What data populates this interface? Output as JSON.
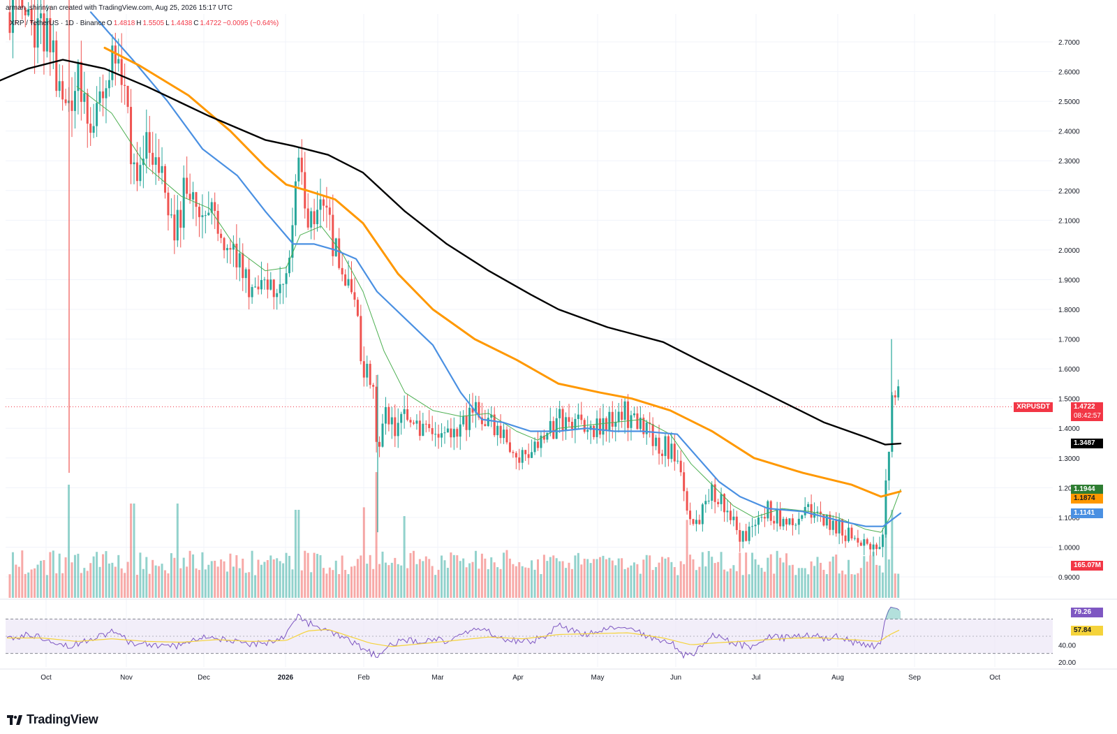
{
  "header": {
    "credit": "arman_shirinyan created with TradingView.com, Aug 25, 2026 15:17 UTC",
    "symbol": "XRP / TetherUS · 1D · Binance",
    "o_label": "O",
    "o_value": "1.4818",
    "h_label": "H",
    "h_value": "1.5505",
    "l_label": "L",
    "l_value": "1.4438",
    "c_label": "C",
    "c_value": "1.4722",
    "change": "−0.0095 (−0.64%)"
  },
  "badges": {
    "symbol_tag": "XRPUSDT",
    "last_price": "1.4722",
    "countdown": "08:42:57",
    "ma200": "1.3487",
    "ma20": "1.1944",
    "ma100": "1.1874",
    "ma50": "1.1141",
    "volume": "165.07M",
    "rsi": "79.26",
    "rsi_ma": "57.84"
  },
  "colors": {
    "up": "#26a69a",
    "down": "#ef5350",
    "ma200": "#000000",
    "ma100": "#ff9800",
    "ma50": "#4a90e2",
    "ma20": "#4caf50",
    "rsi": "#7e57c2",
    "rsi_ma": "#f5d33b"
  },
  "footer": {
    "logo_text": "TradingView"
  },
  "chart_data": {
    "type": "candlestick",
    "y_axis_ticks": [
      "2.7000",
      "2.6000",
      "2.5000",
      "2.4000",
      "2.3000",
      "2.2000",
      "2.1000",
      "2.0000",
      "1.9000",
      "1.8000",
      "1.7000",
      "1.6000",
      "1.5000",
      "1.4000",
      "1.3000",
      "1.2000",
      "1.1000",
      "1.0000",
      "0.9000"
    ],
    "ylim": [
      0.84,
      2.8
    ],
    "x_axis_ticks": [
      "Oct",
      "Nov",
      "Dec",
      "2026",
      "Feb",
      "Mar",
      "Apr",
      "May",
      "Jun",
      "Jul",
      "Aug",
      "Sep",
      "Oct"
    ],
    "rsi_ticks": [
      "20.00",
      "40.00"
    ],
    "rsi_levels": [
      70,
      50,
      30
    ],
    "ma200": [
      [
        0,
        2.57
      ],
      [
        40,
        2.61
      ],
      [
        90,
        2.64
      ],
      [
        150,
        2.61
      ],
      [
        210,
        2.55
      ],
      [
        300,
        2.45
      ],
      [
        380,
        2.37
      ],
      [
        420,
        2.35
      ],
      [
        470,
        2.32
      ],
      [
        520,
        2.26
      ],
      [
        580,
        2.13
      ],
      [
        640,
        2.02
      ],
      [
        700,
        1.93
      ],
      [
        760,
        1.85
      ],
      [
        800,
        1.8
      ],
      [
        870,
        1.74
      ],
      [
        950,
        1.69
      ],
      [
        1000,
        1.63
      ],
      [
        1060,
        1.56
      ],
      [
        1120,
        1.49
      ],
      [
        1180,
        1.42
      ],
      [
        1240,
        1.37
      ],
      [
        1268,
        1.345
      ],
      [
        1290,
        1.3487
      ]
    ],
    "ma100": [
      [
        150,
        2.68
      ],
      [
        200,
        2.62
      ],
      [
        270,
        2.52
      ],
      [
        330,
        2.4
      ],
      [
        380,
        2.28
      ],
      [
        410,
        2.22
      ],
      [
        440,
        2.2
      ],
      [
        480,
        2.17
      ],
      [
        520,
        2.09
      ],
      [
        570,
        1.92
      ],
      [
        620,
        1.8
      ],
      [
        680,
        1.7
      ],
      [
        740,
        1.63
      ],
      [
        800,
        1.55
      ],
      [
        860,
        1.52
      ],
      [
        905,
        1.5
      ],
      [
        960,
        1.46
      ],
      [
        1020,
        1.39
      ],
      [
        1080,
        1.3
      ],
      [
        1150,
        1.25
      ],
      [
        1220,
        1.21
      ],
      [
        1262,
        1.17
      ],
      [
        1290,
        1.1874
      ]
    ],
    "ma50": [
      [
        130,
        2.8
      ],
      [
        190,
        2.64
      ],
      [
        240,
        2.5
      ],
      [
        290,
        2.34
      ],
      [
        340,
        2.25
      ],
      [
        380,
        2.13
      ],
      [
        420,
        2.02
      ],
      [
        450,
        2.02
      ],
      [
        480,
        2.0
      ],
      [
        510,
        1.97
      ],
      [
        540,
        1.86
      ],
      [
        580,
        1.77
      ],
      [
        620,
        1.68
      ],
      [
        660,
        1.52
      ],
      [
        690,
        1.43
      ],
      [
        720,
        1.42
      ],
      [
        760,
        1.39
      ],
      [
        800,
        1.39
      ],
      [
        840,
        1.4
      ],
      [
        880,
        1.39
      ],
      [
        920,
        1.39
      ],
      [
        970,
        1.38
      ],
      [
        1000,
        1.3
      ],
      [
        1030,
        1.22
      ],
      [
        1060,
        1.17
      ],
      [
        1100,
        1.13
      ],
      [
        1150,
        1.12
      ],
      [
        1200,
        1.09
      ],
      [
        1240,
        1.07
      ],
      [
        1265,
        1.07
      ],
      [
        1290,
        1.1141
      ]
    ],
    "ma20": [
      [
        110,
        2.55
      ],
      [
        160,
        2.46
      ],
      [
        210,
        2.28
      ],
      [
        260,
        2.18
      ],
      [
        300,
        2.14
      ],
      [
        340,
        2.0
      ],
      [
        380,
        1.93
      ],
      [
        410,
        1.94
      ],
      [
        430,
        2.05
      ],
      [
        460,
        2.08
      ],
      [
        490,
        1.99
      ],
      [
        520,
        1.86
      ],
      [
        550,
        1.66
      ],
      [
        580,
        1.52
      ],
      [
        620,
        1.46
      ],
      [
        660,
        1.44
      ],
      [
        700,
        1.45
      ],
      [
        740,
        1.39
      ],
      [
        770,
        1.36
      ],
      [
        800,
        1.4
      ],
      [
        840,
        1.41
      ],
      [
        880,
        1.42
      ],
      [
        920,
        1.43
      ],
      [
        960,
        1.38
      ],
      [
        990,
        1.28
      ],
      [
        1020,
        1.21
      ],
      [
        1050,
        1.14
      ],
      [
        1080,
        1.1
      ],
      [
        1120,
        1.13
      ],
      [
        1160,
        1.12
      ],
      [
        1200,
        1.1
      ],
      [
        1240,
        1.06
      ],
      [
        1262,
        1.05
      ],
      [
        1275,
        1.1
      ],
      [
        1290,
        1.1944
      ]
    ],
    "price_path": [
      [
        14,
        2.8
      ],
      [
        40,
        2.78
      ],
      [
        70,
        2.7
      ],
      [
        98,
        2.45
      ],
      [
        110,
        2.6
      ],
      [
        130,
        2.4
      ],
      [
        150,
        2.55
      ],
      [
        165,
        2.65
      ],
      [
        180,
        2.5
      ],
      [
        195,
        2.22
      ],
      [
        210,
        2.4
      ],
      [
        230,
        2.25
      ],
      [
        250,
        2.05
      ],
      [
        265,
        2.2
      ],
      [
        285,
        2.1
      ],
      [
        300,
        2.18
      ],
      [
        320,
        2.05
      ],
      [
        340,
        1.98
      ],
      [
        360,
        1.88
      ],
      [
        380,
        1.85
      ],
      [
        400,
        1.84
      ],
      [
        410,
        1.95
      ],
      [
        420,
        2.1
      ],
      [
        428,
        2.35
      ],
      [
        440,
        2.12
      ],
      [
        460,
        2.15
      ],
      [
        475,
        2.04
      ],
      [
        490,
        1.92
      ],
      [
        505,
        1.85
      ],
      [
        520,
        1.6
      ],
      [
        535,
        1.55
      ],
      [
        541,
        1.25
      ],
      [
        550,
        1.45
      ],
      [
        565,
        1.4
      ],
      [
        580,
        1.43
      ],
      [
        600,
        1.38
      ],
      [
        620,
        1.37
      ],
      [
        640,
        1.36
      ],
      [
        660,
        1.4
      ],
      [
        680,
        1.48
      ],
      [
        700,
        1.42
      ],
      [
        720,
        1.36
      ],
      [
        740,
        1.32
      ],
      [
        760,
        1.33
      ],
      [
        780,
        1.36
      ],
      [
        800,
        1.43
      ],
      [
        820,
        1.42
      ],
      [
        845,
        1.38
      ],
      [
        870,
        1.41
      ],
      [
        890,
        1.46
      ],
      [
        910,
        1.42
      ],
      [
        930,
        1.38
      ],
      [
        950,
        1.34
      ],
      [
        970,
        1.3
      ],
      [
        985,
        1.12
      ],
      [
        1000,
        1.09
      ],
      [
        1020,
        1.2
      ],
      [
        1040,
        1.12
      ],
      [
        1060,
        1.04
      ],
      [
        1080,
        1.05
      ],
      [
        1100,
        1.13
      ],
      [
        1120,
        1.09
      ],
      [
        1140,
        1.1
      ],
      [
        1160,
        1.12
      ],
      [
        1180,
        1.1
      ],
      [
        1200,
        1.07
      ],
      [
        1220,
        1.03
      ],
      [
        1240,
        1.0
      ],
      [
        1258,
        0.99
      ],
      [
        1265,
        1.05
      ],
      [
        1272,
        1.3
      ],
      [
        1278,
        1.5
      ],
      [
        1285,
        1.51
      ],
      [
        1290,
        1.4722
      ]
    ],
    "rsi_path": [
      [
        10,
        45
      ],
      [
        40,
        52
      ],
      [
        70,
        47
      ],
      [
        100,
        38
      ],
      [
        130,
        48
      ],
      [
        160,
        55
      ],
      [
        190,
        42
      ],
      [
        220,
        40
      ],
      [
        250,
        38
      ],
      [
        280,
        46
      ],
      [
        300,
        50
      ],
      [
        330,
        44
      ],
      [
        360,
        40
      ],
      [
        390,
        44
      ],
      [
        410,
        52
      ],
      [
        425,
        74
      ],
      [
        440,
        66
      ],
      [
        460,
        58
      ],
      [
        480,
        52
      ],
      [
        500,
        44
      ],
      [
        520,
        36
      ],
      [
        540,
        26
      ],
      [
        560,
        40
      ],
      [
        580,
        46
      ],
      [
        600,
        42
      ],
      [
        620,
        48
      ],
      [
        640,
        44
      ],
      [
        660,
        50
      ],
      [
        680,
        60
      ],
      [
        700,
        55
      ],
      [
        720,
        46
      ],
      [
        740,
        45
      ],
      [
        760,
        44
      ],
      [
        780,
        50
      ],
      [
        800,
        62
      ],
      [
        820,
        56
      ],
      [
        840,
        52
      ],
      [
        860,
        55
      ],
      [
        880,
        60
      ],
      [
        900,
        62
      ],
      [
        920,
        52
      ],
      [
        940,
        46
      ],
      [
        960,
        44
      ],
      [
        980,
        28
      ],
      [
        995,
        30
      ],
      [
        1020,
        52
      ],
      [
        1040,
        46
      ],
      [
        1060,
        40
      ],
      [
        1080,
        38
      ],
      [
        1100,
        50
      ],
      [
        1120,
        48
      ],
      [
        1140,
        50
      ],
      [
        1160,
        52
      ],
      [
        1180,
        48
      ],
      [
        1200,
        50
      ],
      [
        1220,
        44
      ],
      [
        1240,
        38
      ],
      [
        1260,
        40
      ],
      [
        1268,
        70
      ],
      [
        1275,
        84
      ],
      [
        1285,
        82
      ],
      [
        1290,
        79.26
      ]
    ],
    "rsi_ma_path": [
      [
        10,
        48
      ],
      [
        60,
        48
      ],
      [
        110,
        44
      ],
      [
        160,
        47
      ],
      [
        210,
        44
      ],
      [
        260,
        43
      ],
      [
        310,
        46
      ],
      [
        360,
        44
      ],
      [
        410,
        45
      ],
      [
        440,
        56
      ],
      [
        470,
        58
      ],
      [
        500,
        50
      ],
      [
        530,
        42
      ],
      [
        560,
        38
      ],
      [
        600,
        41
      ],
      [
        650,
        45
      ],
      [
        700,
        49
      ],
      [
        750,
        47
      ],
      [
        800,
        52
      ],
      [
        850,
        53
      ],
      [
        900,
        54
      ],
      [
        950,
        48
      ],
      [
        990,
        40
      ],
      [
        1020,
        42
      ],
      [
        1060,
        44
      ],
      [
        1100,
        46
      ],
      [
        1140,
        48
      ],
      [
        1180,
        48
      ],
      [
        1220,
        46
      ],
      [
        1260,
        44
      ],
      [
        1275,
        52
      ],
      [
        1290,
        57.84
      ]
    ],
    "volume_spikes": [
      [
        98,
        0.9
      ],
      [
        190,
        0.75
      ],
      [
        255,
        0.75
      ],
      [
        425,
        0.7
      ],
      [
        520,
        0.72
      ],
      [
        538,
        1.0
      ],
      [
        578,
        0.65
      ],
      [
        985,
        0.62
      ],
      [
        1270,
        0.55
      ],
      [
        1278,
        0.7
      ]
    ]
  }
}
